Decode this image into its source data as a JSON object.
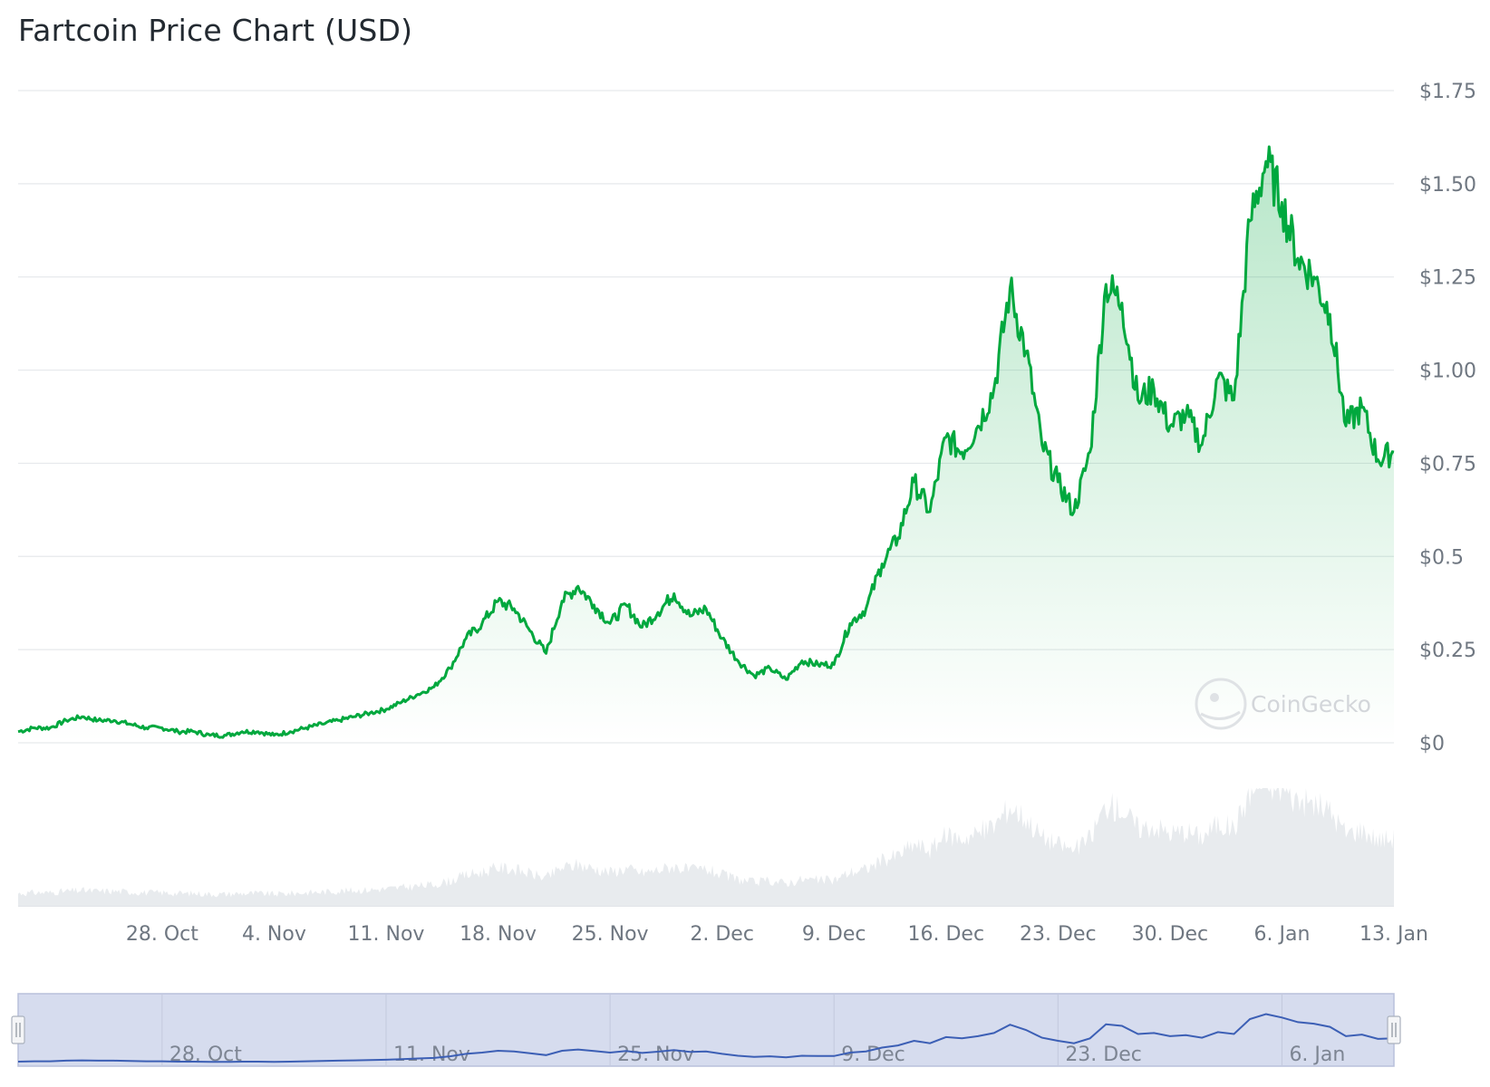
{
  "chart_data": {
    "type": "area",
    "title": "Fartcoin Price Chart (USD)",
    "currency": "USD",
    "ylim": [
      0,
      1.75
    ],
    "yticks": [
      "$0",
      "$0.25",
      "$0.5",
      "$0.75",
      "$1.00",
      "$1.25",
      "$1.50",
      "$1.75"
    ],
    "ytick_values": [
      0,
      0.25,
      0.5,
      0.75,
      1.0,
      1.25,
      1.5,
      1.75
    ],
    "xlim": [
      "2024-10-19",
      "2025-01-13"
    ],
    "xticks": [
      "28. Oct",
      "4. Nov",
      "11. Nov",
      "18. Nov",
      "25. Nov",
      "2. Dec",
      "9. Dec",
      "16. Dec",
      "23. Dec",
      "30. Dec",
      "6. Jan",
      "13. Jan"
    ],
    "xtick_dates": [
      "2024-10-28",
      "2024-11-04",
      "2024-11-11",
      "2024-11-18",
      "2024-11-25",
      "2024-12-02",
      "2024-12-09",
      "2024-12-16",
      "2024-12-23",
      "2024-12-30",
      "2025-01-06",
      "2025-01-13"
    ],
    "grid": true,
    "line_color": "#00a83e",
    "fill_color": "#00a83e",
    "volume_color": "#e8ebee",
    "navigator_color": "#3c5fb5",
    "navigator_fill": "#d6dcee",
    "watermark": "CoinGecko",
    "series": [
      {
        "values": [
          [
            "2024-10-19",
            0.03
          ],
          [
            "2024-10-20",
            0.04
          ],
          [
            "2024-10-21",
            0.04
          ],
          [
            "2024-10-22",
            0.06
          ],
          [
            "2024-10-23",
            0.07
          ],
          [
            "2024-10-24",
            0.06
          ],
          [
            "2024-10-25",
            0.06
          ],
          [
            "2024-10-26",
            0.05
          ],
          [
            "2024-10-27",
            0.04
          ],
          [
            "2024-10-28",
            0.04
          ],
          [
            "2024-10-29",
            0.03
          ],
          [
            "2024-10-30",
            0.03
          ],
          [
            "2024-10-31",
            0.02
          ],
          [
            "2024-11-01",
            0.02
          ],
          [
            "2024-11-02",
            0.03
          ],
          [
            "2024-11-03",
            0.03
          ],
          [
            "2024-11-04",
            0.02
          ],
          [
            "2024-11-05",
            0.03
          ],
          [
            "2024-11-06",
            0.04
          ],
          [
            "2024-11-07",
            0.05
          ],
          [
            "2024-11-08",
            0.06
          ],
          [
            "2024-11-09",
            0.07
          ],
          [
            "2024-11-10",
            0.08
          ],
          [
            "2024-11-11",
            0.09
          ],
          [
            "2024-11-12",
            0.11
          ],
          [
            "2024-11-13",
            0.13
          ],
          [
            "2024-11-14",
            0.15
          ],
          [
            "2024-11-15",
            0.2
          ],
          [
            "2024-11-16",
            0.28
          ],
          [
            "2024-11-17",
            0.32
          ],
          [
            "2024-11-18",
            0.38
          ],
          [
            "2024-11-19",
            0.36
          ],
          [
            "2024-11-20",
            0.3
          ],
          [
            "2024-11-21",
            0.24
          ],
          [
            "2024-11-22",
            0.38
          ],
          [
            "2024-11-23",
            0.42
          ],
          [
            "2024-11-24",
            0.37
          ],
          [
            "2024-11-25",
            0.32
          ],
          [
            "2024-11-26",
            0.37
          ],
          [
            "2024-11-27",
            0.31
          ],
          [
            "2024-11-28",
            0.35
          ],
          [
            "2024-11-29",
            0.4
          ],
          [
            "2024-11-30",
            0.34
          ],
          [
            "2024-12-01",
            0.36
          ],
          [
            "2024-12-02",
            0.28
          ],
          [
            "2024-12-03",
            0.22
          ],
          [
            "2024-12-04",
            0.18
          ],
          [
            "2024-12-05",
            0.2
          ],
          [
            "2024-12-06",
            0.17
          ],
          [
            "2024-12-07",
            0.22
          ],
          [
            "2024-12-08",
            0.21
          ],
          [
            "2024-12-09",
            0.21
          ],
          [
            "2024-12-10",
            0.32
          ],
          [
            "2024-12-11",
            0.36
          ],
          [
            "2024-12-12",
            0.48
          ],
          [
            "2024-12-13",
            0.55
          ],
          [
            "2024-12-14",
            0.7
          ],
          [
            "2024-12-15",
            0.62
          ],
          [
            "2024-12-16",
            0.82
          ],
          [
            "2024-12-17",
            0.78
          ],
          [
            "2024-12-18",
            0.85
          ],
          [
            "2024-12-19",
            0.95
          ],
          [
            "2024-12-20",
            1.22
          ],
          [
            "2024-12-21",
            1.05
          ],
          [
            "2024-12-22",
            0.8
          ],
          [
            "2024-12-23",
            0.7
          ],
          [
            "2024-12-24",
            0.62
          ],
          [
            "2024-12-25",
            0.78
          ],
          [
            "2024-12-26",
            1.23
          ],
          [
            "2024-12-27",
            1.18
          ],
          [
            "2024-12-28",
            0.92
          ],
          [
            "2024-12-29",
            0.95
          ],
          [
            "2024-12-30",
            0.85
          ],
          [
            "2024-12-31",
            0.88
          ],
          [
            "2025-01-01",
            0.8
          ],
          [
            "2025-01-02",
            0.98
          ],
          [
            "2025-01-03",
            0.92
          ],
          [
            "2025-01-04",
            1.4
          ],
          [
            "2025-01-05",
            1.56
          ],
          [
            "2025-01-06",
            1.45
          ],
          [
            "2025-01-07",
            1.3
          ],
          [
            "2025-01-08",
            1.25
          ],
          [
            "2025-01-09",
            1.15
          ],
          [
            "2025-01-10",
            0.85
          ],
          [
            "2025-01-11",
            0.9
          ],
          [
            "2025-01-12",
            0.76
          ],
          [
            "2025-01-13",
            0.78
          ]
        ]
      }
    ]
  }
}
